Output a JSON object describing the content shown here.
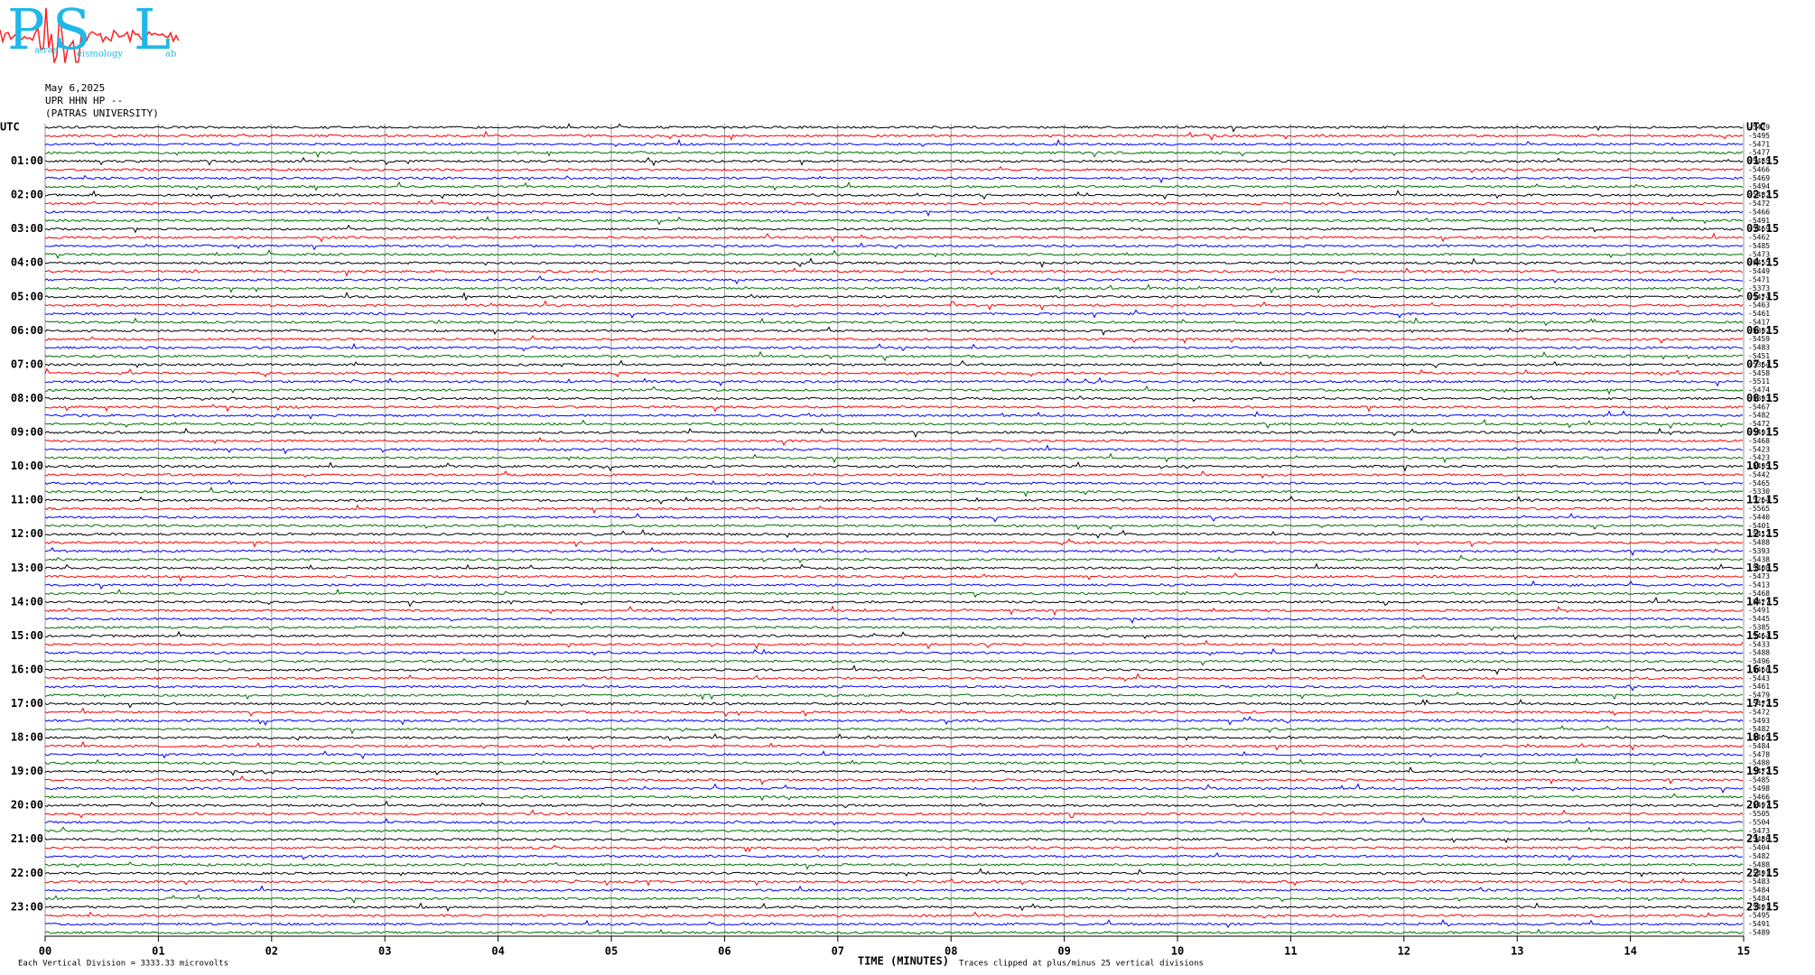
{
  "logo": {
    "letters": [
      "P",
      "S",
      "L"
    ],
    "words": [
      "atras",
      "eismology",
      "ab"
    ]
  },
  "header": [
    "May 6,2025",
    "UPR HHN HP --",
    "(PATRAS UNIVERSITY)"
  ],
  "left_labels": [
    "UTC",
    "01:00",
    "02:00",
    "03:00",
    "04:00",
    "05:00",
    "06:00",
    "07:00",
    "08:00",
    "09:00",
    "10:00",
    "11:00",
    "12:00",
    "13:00",
    "14:00",
    "15:00",
    "16:00",
    "17:00",
    "18:00",
    "19:00",
    "20:00",
    "21:00",
    "22:00",
    "23:00"
  ],
  "right_labels": [
    "UTC",
    "01:15",
    "02:15",
    "03:15",
    "04:15",
    "05:15",
    "06:15",
    "07:15",
    "08:15",
    "09:15",
    "10:15",
    "11:15",
    "12:15",
    "13:15",
    "14:15",
    "15:15",
    "16:15",
    "17:15",
    "18:15",
    "19:15",
    "20:15",
    "21:15",
    "22:15",
    "23:15"
  ],
  "trace_offsets": [
    -5479,
    -5495,
    -5471,
    -5477,
    -5485,
    -5466,
    -5469,
    -5494,
    -5482,
    -5472,
    -5466,
    -5491,
    -5469,
    -5462,
    -5485,
    -5473,
    -5455,
    -5449,
    -5471,
    -5373,
    -5474,
    -5463,
    -5461,
    -5417,
    -5392,
    -5459,
    -5483,
    -5451,
    -5364,
    -5458,
    -5511,
    -5474,
    -5393,
    -5467,
    -5482,
    -5472,
    -5493,
    -5468,
    -5423,
    -5423,
    -5495,
    -5442,
    -5465,
    -5330,
    -5264,
    -5565,
    -5440,
    -5401,
    -5412,
    -5488,
    -5393,
    -5438,
    -5408,
    -5473,
    -5413,
    -5468,
    -5427,
    -5491,
    -5445,
    -5385,
    -5464,
    -5433,
    -5488,
    -5496,
    -5466,
    -5443,
    -5461,
    -5479,
    -5472,
    -5472,
    -5493,
    -5482,
    -5465,
    -5484,
    -5478,
    -5480,
    -5472,
    -5485,
    -5498,
    -5466,
    -5497,
    -5505,
    -5504,
    -5473,
    -5486,
    -5404,
    -5482,
    -5488,
    -5491,
    -5483,
    -5484,
    -5484,
    -5491,
    -5495,
    -5491,
    -5489
  ],
  "trace_colors": [
    "#000000",
    "#ff0000",
    "#0000ff",
    "#007000"
  ],
  "x_labels": [
    "00",
    "01",
    "02",
    "03",
    "04",
    "05",
    "06",
    "07",
    "08",
    "09",
    "10",
    "11",
    "12",
    "13",
    "14",
    "15"
  ],
  "x_title": "TIME (MINUTES)",
  "footnote_left": "Each Vertical Division = 3333.33 microvolts",
  "footnote_right": "Traces clipped at plus/minus 25 vertical divisions"
}
